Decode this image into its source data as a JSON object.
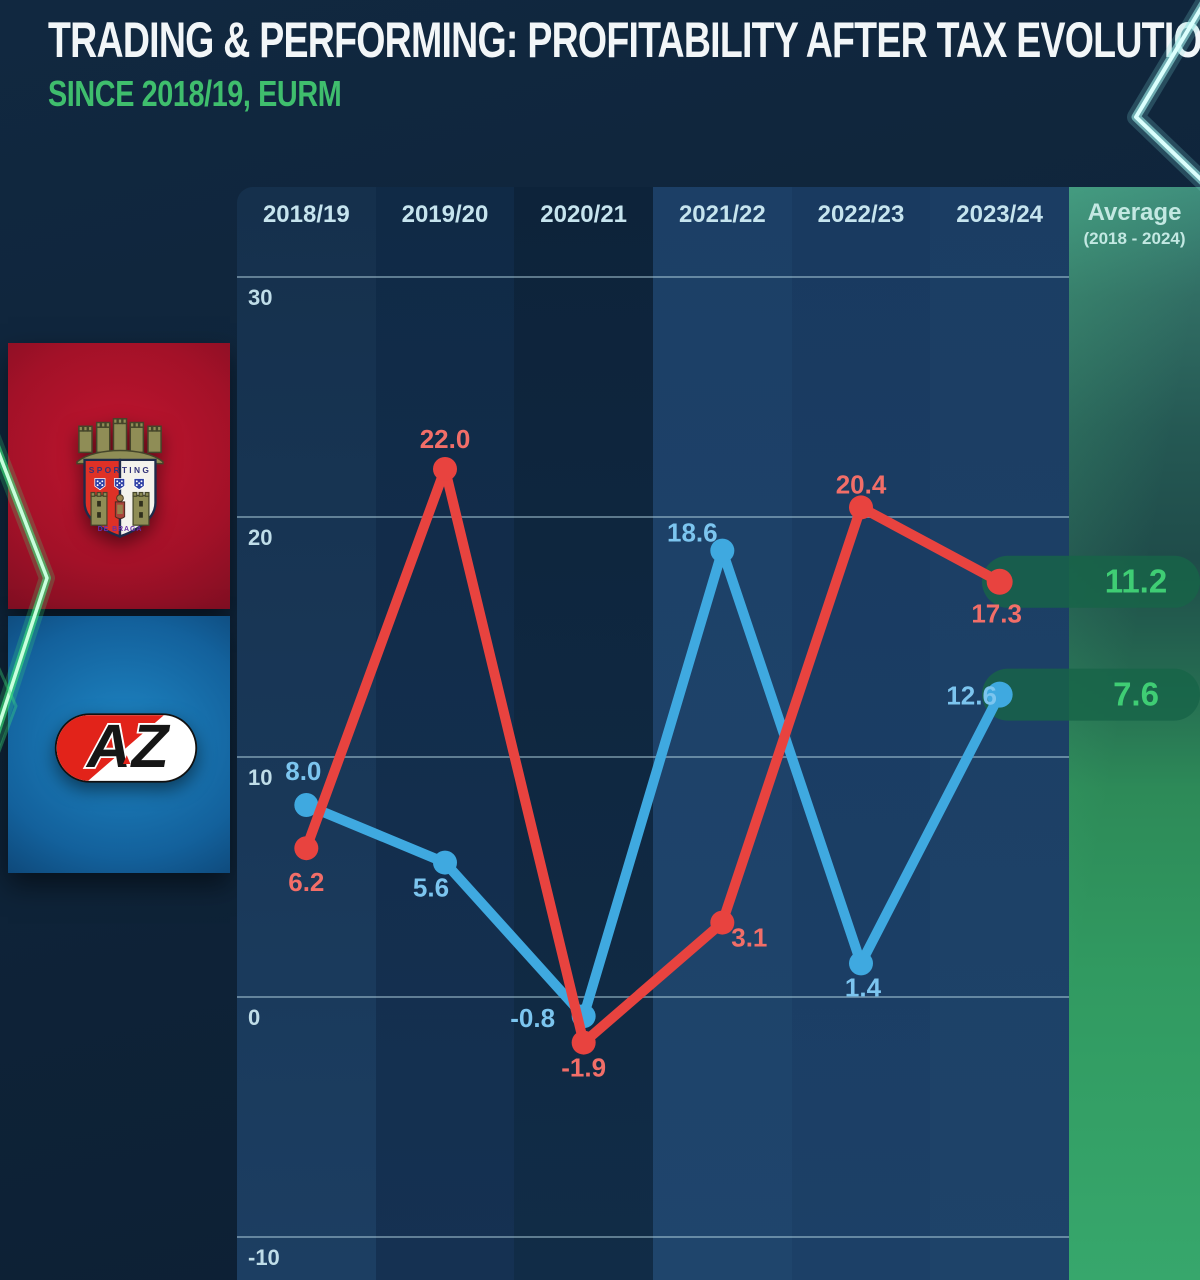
{
  "header": {
    "title": "TRADING & PERFORMING: PROFITABILITY AFTER TAX EVOLUTION",
    "subtitle": "SINCE 2018/19, EURM"
  },
  "chart_data": {
    "type": "line",
    "title": "Profitability after tax evolution since 2018/19 (EURm)",
    "categories": [
      "2018/19",
      "2019/20",
      "2020/21",
      "2021/22",
      "2022/23",
      "2023/24"
    ],
    "average_column": {
      "label": "Average",
      "sublabel": "(2018 - 2024)"
    },
    "y_axis": {
      "ticks": [
        30,
        20,
        10,
        0,
        -10
      ],
      "min": -11.8,
      "max": 33.8
    },
    "grid": true,
    "legend_position": "left-logos",
    "series": [
      {
        "name": "SC Braga",
        "line_color": "#e8433f",
        "label_color": "#f26e68",
        "values": [
          6.2,
          22.0,
          -1.9,
          3.1,
          20.4,
          17.3
        ],
        "average": 11.2
      },
      {
        "name": "AZ Alkmaar",
        "line_color": "#3fa9e0",
        "label_color": "#7cc5ef",
        "values": [
          8.0,
          5.6,
          -0.8,
          18.6,
          1.4,
          12.6
        ],
        "average": 7.6
      }
    ],
    "average_value_color": "#3fcd74",
    "average_pill_color": "#176448"
  }
}
